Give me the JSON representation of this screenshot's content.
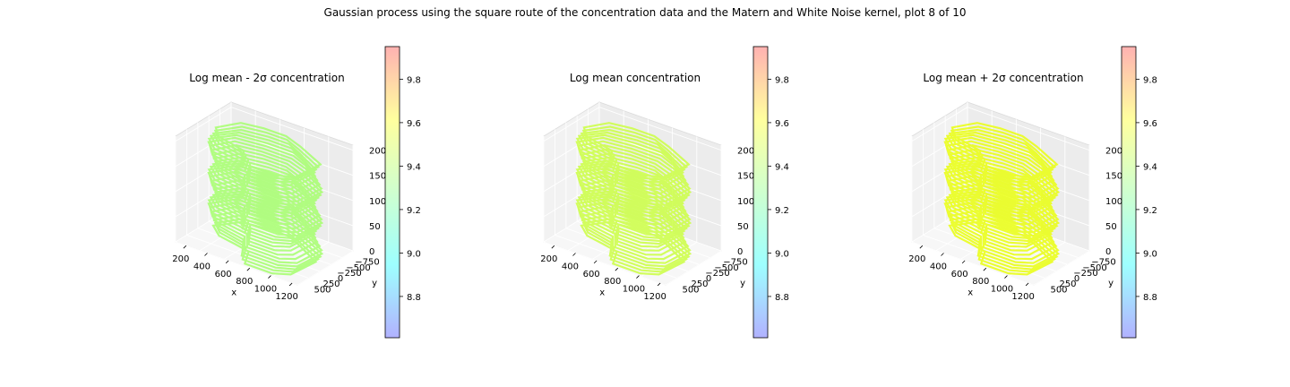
{
  "figure_title": "Gaussian process using the square route of the concentration data and the Matern and White Noise kernel, plot 8 of 10",
  "colormap": [
    "#3333ff",
    "#00ffff",
    "#80ff80",
    "#ffff00",
    "#ff3333"
  ],
  "chart_data": [
    {
      "type": "scatter",
      "title": "Log mean - 2σ concentration",
      "xlabel": "x",
      "ylabel": "y",
      "zlabel": "",
      "x_ticks": [
        "200",
        "400",
        "600",
        "800",
        "1000",
        "1200"
      ],
      "y_ticks": [
        "−750",
        "−500",
        "−250",
        "0",
        "250",
        "500"
      ],
      "z_ticks": [
        "0",
        "50",
        "100",
        "150",
        "200"
      ],
      "xlim": [
        100,
        1250
      ],
      "ylim": [
        -900,
        650
      ],
      "zlim": [
        0,
        210
      ],
      "surface_value": 9.32,
      "color": "#a6ff6e",
      "colorbar": {
        "ticks": [
          "8.8",
          "9.0",
          "9.2",
          "9.4",
          "9.6",
          "9.8"
        ],
        "range": [
          8.61,
          9.95
        ]
      }
    },
    {
      "type": "scatter",
      "title": "Log mean concentration",
      "xlabel": "x",
      "ylabel": "y",
      "zlabel": "",
      "x_ticks": [
        "200",
        "400",
        "600",
        "800",
        "1000",
        "1200"
      ],
      "y_ticks": [
        "−750",
        "−500",
        "−250",
        "0",
        "250",
        "500"
      ],
      "z_ticks": [
        "0",
        "50",
        "100",
        "150",
        "200"
      ],
      "xlim": [
        100,
        1250
      ],
      "ylim": [
        -900,
        650
      ],
      "zlim": [
        0,
        210
      ],
      "surface_value": 9.38,
      "color": "#ccff44",
      "colorbar": {
        "ticks": [
          "8.8",
          "9.0",
          "9.2",
          "9.4",
          "9.6",
          "9.8"
        ],
        "range": [
          8.61,
          9.95
        ]
      }
    },
    {
      "type": "scatter",
      "title": "Log mean + 2σ concentration",
      "xlabel": "x",
      "ylabel": "y",
      "zlabel": "",
      "x_ticks": [
        "200",
        "400",
        "600",
        "800",
        "1000",
        "1200"
      ],
      "y_ticks": [
        "−750",
        "−500",
        "−250",
        "0",
        "250",
        "500"
      ],
      "z_ticks": [
        "0",
        "50",
        "100",
        "150",
        "200"
      ],
      "xlim": [
        100,
        1250
      ],
      "ylim": [
        -900,
        650
      ],
      "zlim": [
        0,
        210
      ],
      "surface_value": 9.45,
      "color": "#eaff10",
      "colorbar": {
        "ticks": [
          "8.8",
          "9.0",
          "9.2",
          "9.4",
          "9.6",
          "9.8"
        ],
        "range": [
          8.61,
          9.95
        ]
      }
    }
  ]
}
